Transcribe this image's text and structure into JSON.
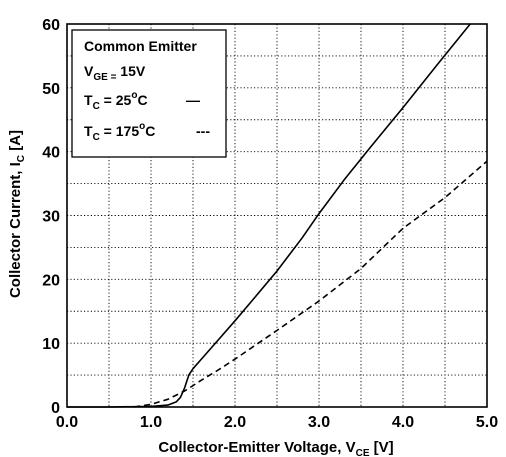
{
  "chart_data": {
    "type": "line",
    "title": "",
    "xlabel": {
      "main": "Collector-Emitter Voltage, V",
      "sub": "CE",
      "unit": " [V]"
    },
    "ylabel": {
      "main": "Collector Current, I",
      "sub": "C",
      "unit": " [A]"
    },
    "xlim": [
      0,
      5
    ],
    "ylim": [
      0,
      60
    ],
    "xticks": [
      "0.0",
      "1.0",
      "2.0",
      "3.0",
      "4.0",
      "5.0"
    ],
    "yticks": [
      "0",
      "10",
      "20",
      "30",
      "40",
      "50",
      "60"
    ],
    "grid": true,
    "legend": {
      "placement": "top-left",
      "title": "Common Emitter",
      "condition": {
        "sym": "V",
        "sub": "GE =",
        "val": " 15V"
      },
      "entries": [
        {
          "sym": "T",
          "sub": "C",
          "val": " = 25",
          "sup": "o",
          "unit": "C",
          "marker": "—"
        },
        {
          "sym": "T",
          "sub": "C",
          "val": " = 175",
          "sup": "o",
          "unit": "C",
          "marker": "---"
        }
      ]
    },
    "series": [
      {
        "style": "solid",
        "x": [
          0.0,
          0.5,
          1.0,
          1.2,
          1.3,
          1.35,
          1.4,
          1.45,
          1.5,
          1.6,
          1.8,
          2.0,
          2.2,
          2.5,
          2.8,
          3.0,
          3.3,
          3.6,
          4.0,
          4.4,
          4.8
        ],
        "y": [
          0.0,
          0.0,
          0.1,
          0.3,
          0.8,
          1.5,
          3.0,
          5.0,
          6.0,
          7.5,
          10.5,
          13.5,
          16.6,
          21.3,
          26.5,
          30.3,
          35.6,
          40.5,
          46.9,
          53.5,
          60.0
        ]
      },
      {
        "style": "dashed",
        "x": [
          0.8,
          1.0,
          1.2,
          1.4,
          1.6,
          1.8,
          2.0,
          2.5,
          3.0,
          3.5,
          4.0,
          4.5,
          5.0
        ],
        "y": [
          0.0,
          0.4,
          1.2,
          2.5,
          4.2,
          5.8,
          7.5,
          12.0,
          16.6,
          21.7,
          28.0,
          32.8,
          38.5
        ]
      }
    ]
  }
}
